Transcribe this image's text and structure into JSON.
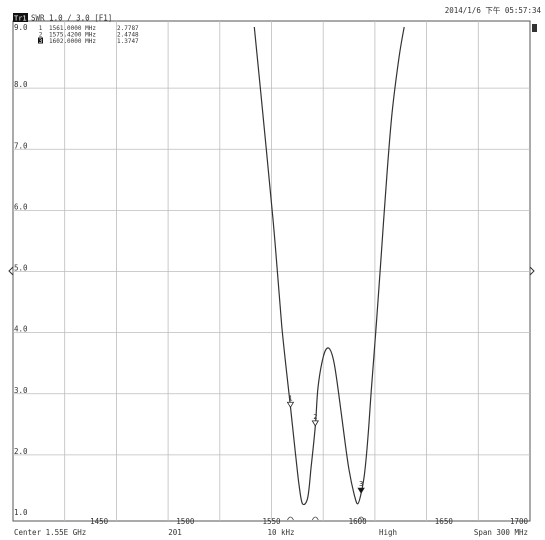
{
  "header": {
    "datetime": "2014/1/6 下午 05:57:34",
    "trace_id": "Tr1",
    "trace_info": "SWR 1.0 / 3.0  [F1]"
  },
  "markers": [
    {
      "num": "1",
      "freq": "1561.0000 MHz",
      "value": "2.7787",
      "active": false
    },
    {
      "num": "2",
      "freq": "1575.4200 MHz",
      "value": "2.4748",
      "active": false
    },
    {
      "num": "3",
      "freq": "1602.0000 MHz",
      "value": "1.3747",
      "active": true
    }
  ],
  "footer": {
    "center": "Center 1.55E GHz",
    "points": "201",
    "ifbw": "10 kHz",
    "power": "High",
    "span": "Span 300 MHz"
  },
  "colors": {
    "trace": "#333333",
    "grid": "#bdbdbd",
    "frame": "#555555",
    "marker_active": "#111111"
  },
  "chart_data": {
    "type": "line",
    "title": "",
    "xlabel": "",
    "ylabel": "",
    "xlim": [
      1400,
      1700
    ],
    "ylim": [
      1.0,
      9.0
    ],
    "grid": true,
    "x_ticks": [
      1450,
      1500,
      1550,
      1600,
      1650,
      1700
    ],
    "y_ticks": [
      "9.0",
      "8.0",
      "7.0",
      "6.0",
      "5.0",
      "4.0",
      "3.0",
      "2.0",
      "1.0"
    ],
    "series": [
      {
        "x": [
          1540,
          1547,
          1552,
          1556,
          1561,
          1564,
          1566,
          1568,
          1571,
          1573,
          1575.42,
          1577,
          1580,
          1583,
          1586,
          1589,
          1592,
          1595,
          1598,
          1600,
          1602,
          1604,
          1606,
          1608,
          1611,
          1614,
          1617,
          1620,
          1624,
          1627
        ],
        "y": [
          9.0,
          7.0,
          5.5,
          4.1,
          2.78,
          2.0,
          1.5,
          1.2,
          1.3,
          1.8,
          2.47,
          3.1,
          3.6,
          3.75,
          3.55,
          3.0,
          2.35,
          1.75,
          1.35,
          1.2,
          1.37,
          1.7,
          2.3,
          3.1,
          4.2,
          5.4,
          6.6,
          7.6,
          8.5,
          9.0
        ]
      }
    ],
    "marker_points": [
      {
        "label": "1",
        "x": 1561.0,
        "y": 2.7787
      },
      {
        "label": "2",
        "x": 1575.42,
        "y": 2.4748
      },
      {
        "label": "3",
        "x": 1602.0,
        "y": 1.3747
      }
    ]
  }
}
